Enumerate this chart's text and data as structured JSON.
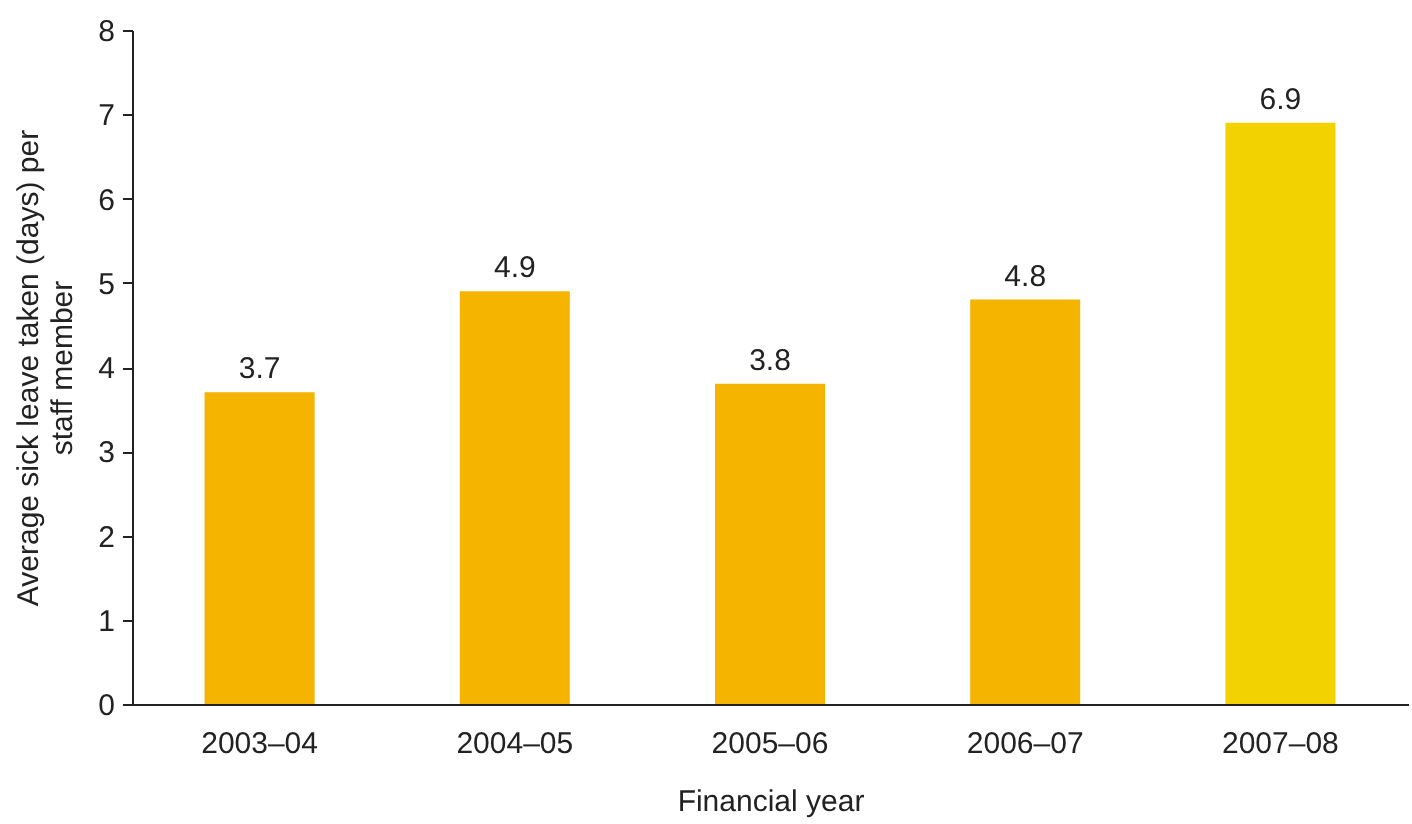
{
  "chart_data": {
    "type": "bar",
    "xlabel": "Financial year",
    "ylabel": "Average sick leave taken (days) per staff member",
    "categories": [
      "2003–04",
      "2004–05",
      "2005–06",
      "2006–07",
      "2007–08"
    ],
    "values": [
      3.7,
      4.9,
      3.8,
      4.8,
      6.9
    ],
    "colors": [
      "#f5b400",
      "#f5b400",
      "#f5b400",
      "#f5b400",
      "#f2d200"
    ],
    "ylim": [
      0,
      8
    ],
    "yticks": [
      0,
      1,
      2,
      3,
      4,
      5,
      6,
      7,
      8
    ],
    "grid": false,
    "data_labels": true
  }
}
